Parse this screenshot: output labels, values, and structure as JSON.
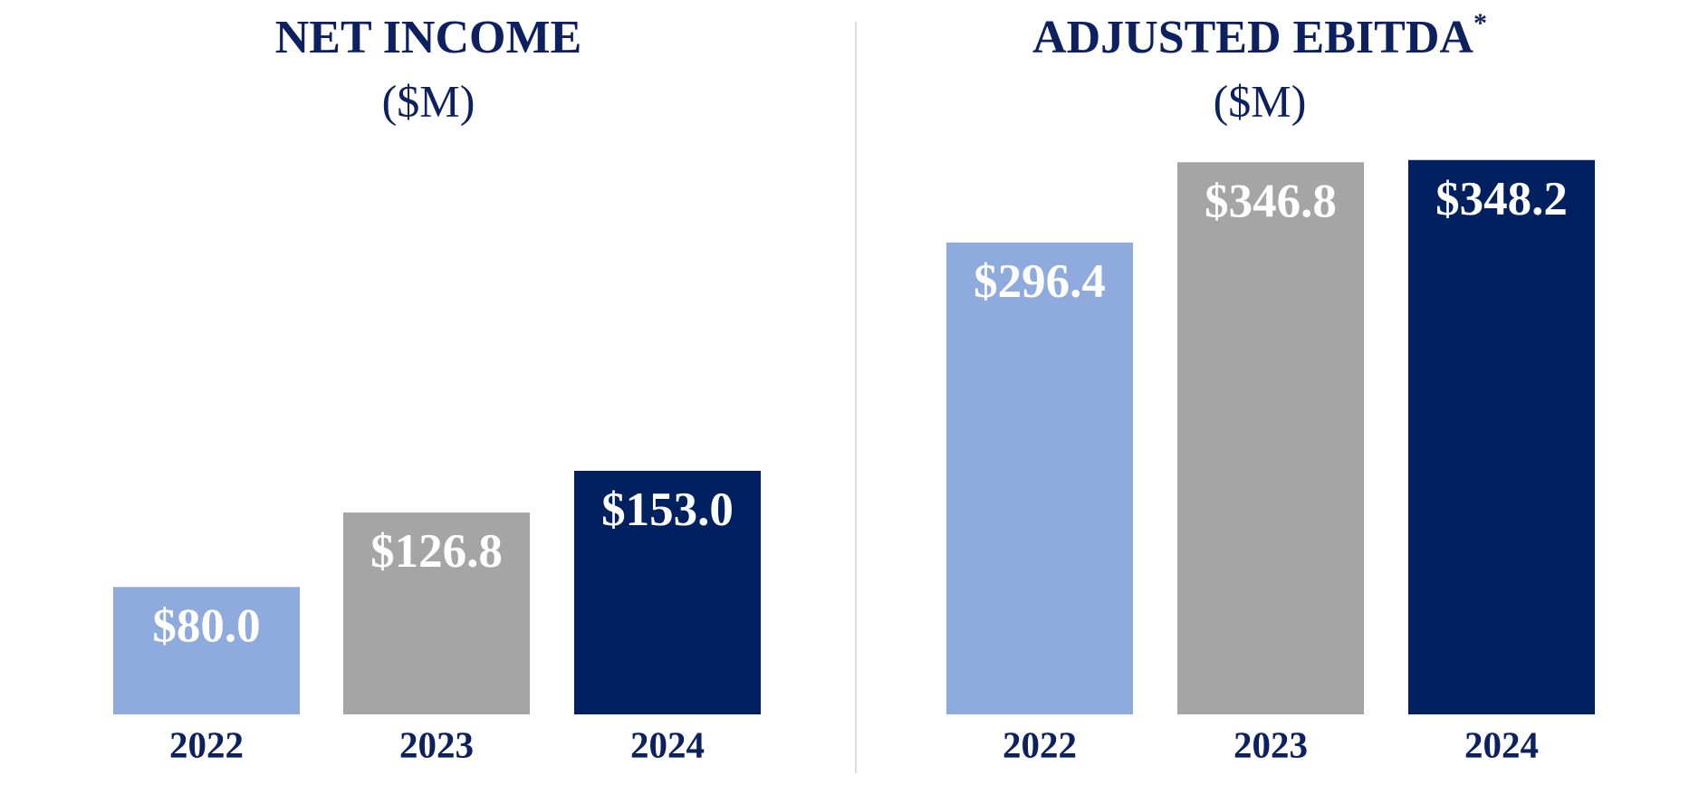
{
  "chart_data": [
    {
      "type": "bar",
      "title": "NET INCOME",
      "subtitle": "($M)",
      "categories": [
        "2022",
        "2023",
        "2024"
      ],
      "values": [
        80.0,
        126.8,
        153.0
      ],
      "value_labels": [
        "$80.0",
        "$126.8",
        "$153.0"
      ],
      "colors": [
        "#8faadc",
        "#a5a5a5",
        "#002060"
      ],
      "ylim": [
        0,
        360
      ]
    },
    {
      "type": "bar",
      "title": "ADJUSTED EBITDA",
      "title_marker": "*",
      "subtitle": "($M)",
      "categories": [
        "2022",
        "2023",
        "2024"
      ],
      "values": [
        296.4,
        346.8,
        348.2
      ],
      "value_labels": [
        "$296.4",
        "$346.8",
        "$348.2"
      ],
      "colors": [
        "#8faadc",
        "#a5a5a5",
        "#002060"
      ],
      "ylim": [
        0,
        360
      ]
    }
  ]
}
